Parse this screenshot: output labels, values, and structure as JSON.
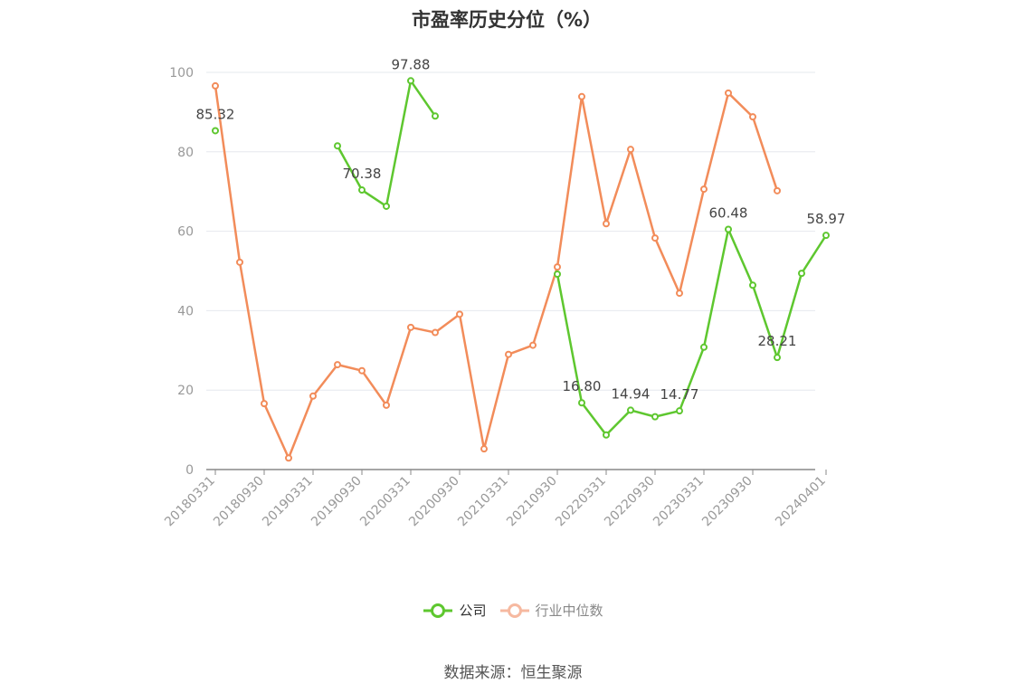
{
  "title": "市盈率历史分位（%）",
  "source": "数据来源：恒生聚源",
  "colors": {
    "company": "#5ec72f",
    "industry": "#f28c5a",
    "industry_legend": "#f6b9a0"
  },
  "chart_data": {
    "type": "line",
    "title": "市盈率历史分位（%）",
    "x_tick_labels": [
      "20180331",
      "20180930",
      "20190331",
      "20190930",
      "20200331",
      "20200930",
      "20210331",
      "20210930",
      "20220331",
      "20220930",
      "20230331",
      "20230930",
      "20240401"
    ],
    "ylim": [
      0,
      100
    ],
    "y_ticks": [
      0,
      20,
      40,
      60,
      80,
      100
    ],
    "grid": true,
    "legend_position": "bottom-center",
    "series": [
      {
        "name": "公司",
        "values": [
          85.32,
          null,
          null,
          null,
          null,
          81.5,
          70.38,
          66.3,
          97.88,
          89.0,
          null,
          null,
          null,
          null,
          49.2,
          16.8,
          8.7,
          14.94,
          13.3,
          14.77,
          30.8,
          60.48,
          46.4,
          28.21,
          49.4,
          58.97
        ],
        "labeled": [
          {
            "index": 0,
            "text": "85.32"
          },
          {
            "index": 6,
            "text": "70.38"
          },
          {
            "index": 8,
            "text": "97.88"
          },
          {
            "index": 15,
            "text": "16.80"
          },
          {
            "index": 17,
            "text": "14.94"
          },
          {
            "index": 19,
            "text": "14.77"
          },
          {
            "index": 21,
            "text": "60.48"
          },
          {
            "index": 23,
            "text": "28.21"
          },
          {
            "index": 25,
            "text": "58.97"
          }
        ]
      },
      {
        "name": "行业中位数",
        "values": [
          96.6,
          52.2,
          16.6,
          2.9,
          18.5,
          26.4,
          24.9,
          16.2,
          35.8,
          34.5,
          39.1,
          5.2,
          29.0,
          31.3,
          51.0,
          93.9,
          61.9,
          80.6,
          58.3,
          44.4,
          70.6,
          94.8,
          88.8,
          70.2,
          null,
          null
        ]
      }
    ]
  }
}
